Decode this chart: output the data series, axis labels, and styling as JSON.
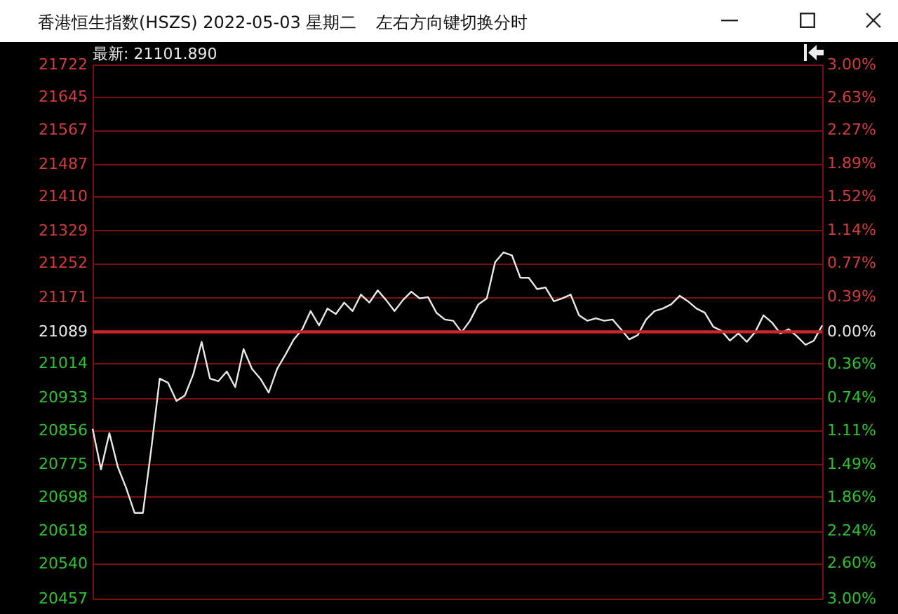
{
  "chart_data": {
    "type": "line",
    "title": "香港恒生指数(HSZS) 2022-05-03 星期二",
    "subtitle": "左右方向键切换分时",
    "annotations": [
      "最新: 21101.890"
    ],
    "categories": [
      null,
      null,
      null,
      null,
      null,
      null,
      null,
      null,
      null,
      null,
      null,
      null,
      null,
      null,
      null,
      null,
      null,
      null,
      null,
      null,
      null,
      null,
      null,
      null,
      null,
      null,
      null,
      null,
      null,
      null,
      null,
      null,
      null,
      null,
      null,
      null,
      null,
      null,
      null,
      null,
      null,
      null,
      null,
      null,
      null,
      null,
      null,
      null,
      null,
      null,
      null,
      null,
      null,
      null,
      null,
      null,
      null,
      null,
      null,
      null,
      null,
      null,
      null,
      null,
      null,
      null,
      null,
      null,
      null,
      null,
      null,
      null,
      null,
      null,
      null,
      null,
      null,
      null,
      null,
      null,
      null,
      null,
      null,
      null,
      null,
      null,
      null,
      null
    ],
    "series": [
      {
        "color": "#e8e8e8",
        "values": [
          20859,
          20763,
          20849,
          20769,
          20719,
          20660,
          20660,
          20812,
          20978,
          20968,
          20925,
          20938,
          20988,
          21065,
          20978,
          20972,
          20995,
          20958,
          21048,
          21001,
          20978,
          20945,
          21001,
          21035,
          21071,
          21095,
          21138,
          21104,
          21144,
          21131,
          21158,
          21138,
          21177,
          21158,
          21187,
          21164,
          21138,
          21164,
          21184,
          21168,
          21171,
          21134,
          21118,
          21115,
          21088,
          21115,
          21154,
          21168,
          21254,
          21277,
          21270,
          21217,
          21217,
          21190,
          21194,
          21161,
          21168,
          21177,
          21128,
          21115,
          21121,
          21115,
          21118,
          21095,
          21071,
          21081,
          21118,
          21138,
          21144,
          21154,
          21174,
          21161,
          21144,
          21134,
          21101,
          21091,
          21068,
          21085,
          21065,
          21088,
          21128,
          21111,
          21085,
          21095,
          21078,
          21058,
          21068,
          21104
        ]
      }
    ],
    "ylim": [
      20457,
      21722
    ],
    "yticks": [
      21722,
      21645,
      21567,
      21487,
      21410,
      21329,
      21252,
      21171,
      21089,
      21014,
      20933,
      20856,
      20775,
      20698,
      20618,
      20540,
      20457
    ],
    "y2lim": [
      -3,
      3
    ],
    "y2ticks": [
      {
        "value": 3,
        "label": "3.00%"
      },
      {
        "value": 2.63,
        "label": "2.63%"
      },
      {
        "value": 2.27,
        "label": "2.27%"
      },
      {
        "value": 1.89,
        "label": "1.89%"
      },
      {
        "value": 1.52,
        "label": "1.52%"
      },
      {
        "value": 1.14,
        "label": "1.14%"
      },
      {
        "value": 0.77,
        "label": "0.77%"
      },
      {
        "value": 0.39,
        "label": "0.39%"
      },
      {
        "value": 0,
        "label": "0.00%"
      },
      {
        "value": -0.36,
        "label": "0.36%"
      },
      {
        "value": -0.74,
        "label": "0.74%"
      },
      {
        "value": -1.11,
        "label": "1.11%"
      },
      {
        "value": -1.49,
        "label": "1.49%"
      },
      {
        "value": -1.86,
        "label": "1.86%"
      },
      {
        "value": -2.24,
        "label": "2.24%"
      },
      {
        "value": -2.6,
        "label": "2.60%"
      },
      {
        "value": -3,
        "label": "3.00%"
      }
    ],
    "ref_lines": [
      {
        "axis": "y",
        "value": 21089,
        "color": "#c8282c"
      }
    ],
    "grid": "y",
    "marker": "none",
    "line_style": "solid",
    "tick_labels": "y"
  }
}
